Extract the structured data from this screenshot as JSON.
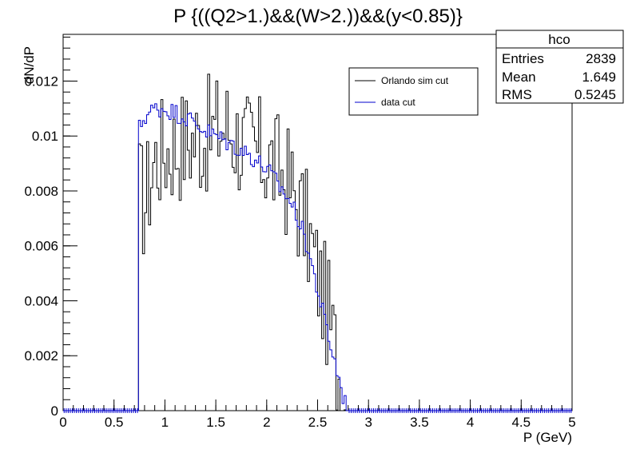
{
  "chart_data": {
    "type": "histogram",
    "title": "P {((Q2>1.)&&(W>2.))&&(y<0.85)}",
    "xlabel": "P (GeV)",
    "ylabel": "dN/dP",
    "xlim": [
      0,
      5
    ],
    "ylim": [
      0,
      0.0137
    ],
    "x_ticks": [
      "0",
      "0.5",
      "1",
      "1.5",
      "2",
      "2.5",
      "3",
      "3.5",
      "4",
      "4.5",
      "5"
    ],
    "x_tick_values": [
      0,
      0.5,
      1,
      1.5,
      2,
      2.5,
      3,
      3.5,
      4,
      4.5,
      5
    ],
    "y_ticks": [
      "0",
      "0.002",
      "0.004",
      "0.006",
      "0.008",
      "0.01",
      "0.012"
    ],
    "y_tick_values": [
      0,
      0.002,
      0.004,
      0.006,
      0.008,
      0.01,
      0.012
    ],
    "stats_box": {
      "name": "hco",
      "rows": [
        {
          "label": "Entries",
          "value": "2839"
        },
        {
          "label": "Mean",
          "value": "1.649"
        },
        {
          "label": "RMS",
          "value": "0.5245"
        }
      ]
    },
    "legend": {
      "position": "top-right",
      "entries": [
        {
          "label": "Orlando sim cut",
          "color": "#000000"
        },
        {
          "label": "data cut",
          "color": "#0000cc"
        }
      ]
    },
    "series": [
      {
        "name": "Orlando sim cut",
        "color": "#000000",
        "knots": [
          [
            0.74,
            0.0081
          ],
          [
            0.8,
            0.0075
          ],
          [
            0.9,
            0.0092
          ],
          [
            1.0,
            0.0095
          ],
          [
            1.2,
            0.0098
          ],
          [
            1.4,
            0.01
          ],
          [
            1.6,
            0.0104
          ],
          [
            1.8,
            0.0096
          ],
          [
            2.0,
            0.0092
          ],
          [
            2.2,
            0.0084
          ],
          [
            2.3,
            0.0076
          ],
          [
            2.4,
            0.0066
          ],
          [
            2.5,
            0.005
          ],
          [
            2.6,
            0.0036
          ],
          [
            2.7,
            0.0016
          ],
          [
            2.76,
            0.0004
          ],
          [
            2.8,
            0.0
          ]
        ]
      },
      {
        "name": "data cut",
        "color": "#0000cc",
        "knots": [
          [
            0.74,
            0.0102
          ],
          [
            0.8,
            0.0107
          ],
          [
            0.9,
            0.011
          ],
          [
            1.0,
            0.011
          ],
          [
            1.2,
            0.0107
          ],
          [
            1.4,
            0.0102
          ],
          [
            1.6,
            0.0098
          ],
          [
            1.8,
            0.0094
          ],
          [
            2.0,
            0.0088
          ],
          [
            2.2,
            0.0078
          ],
          [
            2.3,
            0.0071
          ],
          [
            2.4,
            0.006
          ],
          [
            2.5,
            0.0044
          ],
          [
            2.6,
            0.0028
          ],
          [
            2.7,
            0.0013
          ],
          [
            2.76,
            0.0004
          ],
          [
            2.8,
            0.0
          ]
        ]
      }
    ],
    "bin_width": 0.02,
    "nonzero_range": [
      0.74,
      2.8
    ]
  }
}
